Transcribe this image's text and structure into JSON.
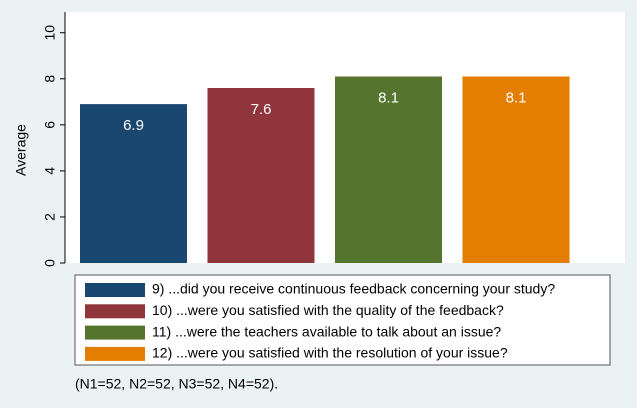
{
  "chart_data": {
    "type": "bar",
    "series": [
      {
        "name": "9) ...did you receive continuous feedback concerning your study?",
        "color": "#1a476f",
        "values": [
          6.9
        ]
      },
      {
        "name": "10) ...were you satisfied with the quality of the feedback?",
        "color": "#90353b",
        "values": [
          7.6
        ]
      },
      {
        "name": "11) ...were the teachers available to talk about an issue?",
        "color": "#55752f",
        "values": [
          8.1
        ]
      },
      {
        "name": "12) ...were you satisfied with the resolution of your issue?",
        "color": "#e37e00",
        "values": [
          8.1
        ]
      }
    ],
    "ylabel": "Average",
    "ylim": [
      0,
      10.9
    ],
    "yticks": [
      0,
      2,
      4,
      6,
      8,
      10
    ],
    "grid": false,
    "legend": "bottom",
    "note": "(N1=52, N2=52, N3=52, N4=52)."
  }
}
